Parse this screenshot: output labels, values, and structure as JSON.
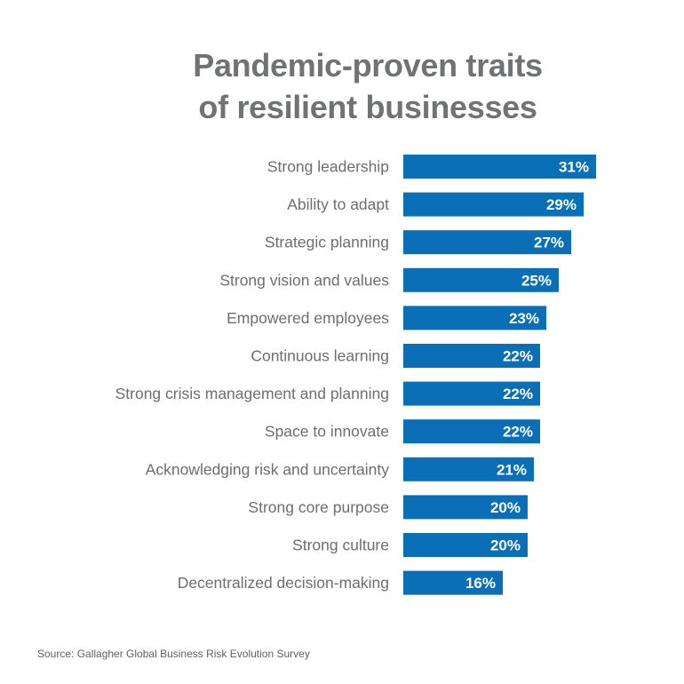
{
  "chart_data": {
    "type": "bar",
    "orientation": "horizontal",
    "title": [
      "Pandemic-proven traits",
      "of resilient businesses"
    ],
    "categories": [
      "Strong leadership",
      "Ability to adapt",
      "Strategic planning",
      "Strong vision and values",
      "Empowered employees",
      "Continuous learning",
      "Strong crisis management and planning",
      "Space to innovate",
      "Acknowledging risk and uncertainty",
      "Strong core purpose",
      "Strong culture",
      "Decentralized decision-making"
    ],
    "values": [
      31,
      29,
      27,
      25,
      23,
      22,
      22,
      22,
      21,
      20,
      20,
      16
    ],
    "value_labels": [
      "31%",
      "29%",
      "27%",
      "25%",
      "23%",
      "22%",
      "22%",
      "22%",
      "21%",
      "20%",
      "20%",
      "16%"
    ],
    "unit": "%",
    "grid": false,
    "legend": "none",
    "bar_color": "#0a6fb7",
    "label_color": "#6d6e70",
    "value_label_color": "#ffffff"
  },
  "source": "Source: Gallagher Global Business Risk Evolution Survey"
}
